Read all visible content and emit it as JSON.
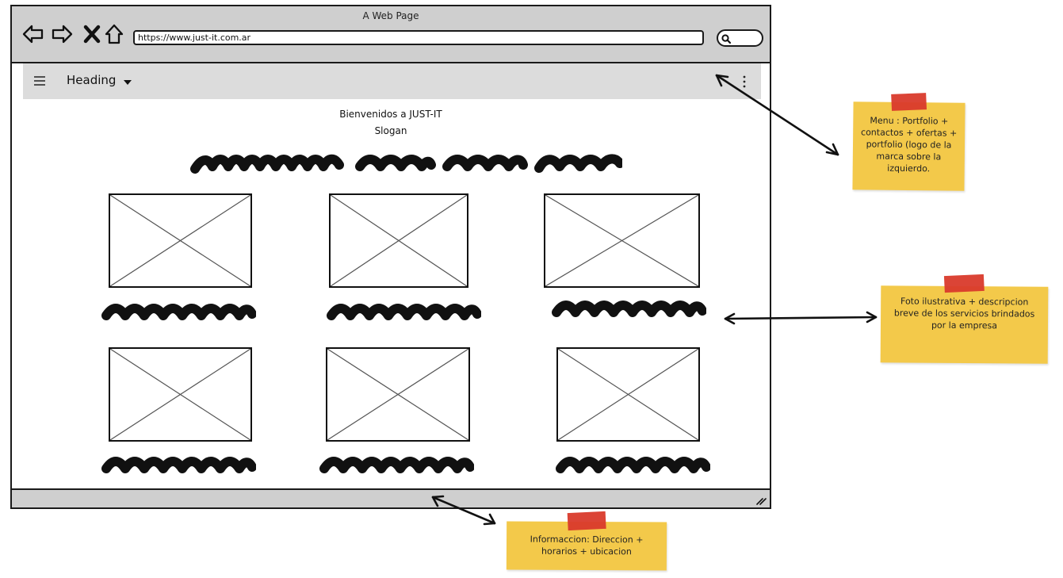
{
  "browser": {
    "title": "A Web Page",
    "url": "https://www.just-it.com.ar",
    "nav": {
      "back": "back-arrow-icon",
      "forward": "forward-arrow-icon",
      "stop": "close-icon",
      "home": "home-icon",
      "search": "search-icon"
    }
  },
  "appbar": {
    "heading": "Heading",
    "menu_icon": "hamburger-icon",
    "dropdown_icon": "caret-down-icon",
    "more_icon": "kebab-menu-icon"
  },
  "main": {
    "welcome": "Bienvenidos a JUST-IT",
    "slogan": "Slogan",
    "image_placeholder_count": 6
  },
  "notes": {
    "menu": "Menu :  Portfolio + contactos + ofertas + portfolio (logo de la marca sobre la izquierdo.",
    "services": "Foto ilustrativa + descripcion breve de los servicios brindados por la empresa",
    "footer": "Informaccion: Direccion + horarios + ubicacion"
  },
  "colors": {
    "note_yellow": "#f3c94a",
    "tape_red": "#d93a2b",
    "chrome_gray": "#cfcfcf",
    "appbar_gray": "#dcdcdc"
  }
}
